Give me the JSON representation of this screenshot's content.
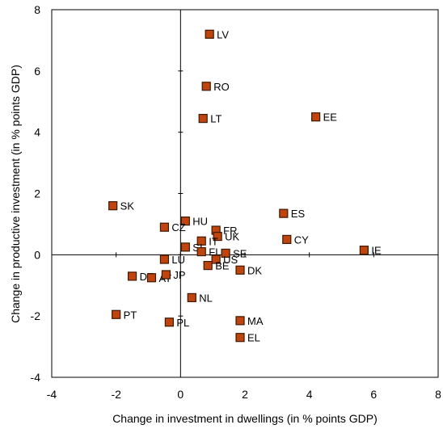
{
  "chart_data": {
    "type": "scatter",
    "title": "",
    "xlabel": "Change in investment in dwellings (in % points GDP)",
    "ylabel": "Change in productive investment (in % points GDP)",
    "xlim": [
      -4,
      8
    ],
    "ylim": [
      -4,
      8
    ],
    "xticks": [
      -4,
      -2,
      0,
      2,
      4,
      6,
      8
    ],
    "yticks": [
      -4,
      -2,
      0,
      2,
      4,
      6,
      8
    ],
    "grid": false,
    "marker": {
      "shape": "square",
      "fill": "#c0440d",
      "stroke": "#3d1a00"
    },
    "points": [
      {
        "label": "LV",
        "x": 0.9,
        "y": 7.2
      },
      {
        "label": "RO",
        "x": 0.8,
        "y": 5.5
      },
      {
        "label": "LT",
        "x": 0.7,
        "y": 4.45
      },
      {
        "label": "EE",
        "x": 4.2,
        "y": 4.5
      },
      {
        "label": "SK",
        "x": -2.1,
        "y": 1.6
      },
      {
        "label": "HU",
        "x": 0.15,
        "y": 1.1
      },
      {
        "label": "CZ",
        "x": -0.5,
        "y": 0.9
      },
      {
        "label": "ES",
        "x": 3.2,
        "y": 1.35
      },
      {
        "label": "FR",
        "x": 1.1,
        "y": 0.8
      },
      {
        "label": "UK",
        "x": 1.15,
        "y": 0.6
      },
      {
        "label": "CY",
        "x": 3.3,
        "y": 0.5
      },
      {
        "label": "IT",
        "x": 0.65,
        "y": 0.45
      },
      {
        "label": "SI",
        "x": 0.15,
        "y": 0.25
      },
      {
        "label": "FI",
        "x": 0.65,
        "y": 0.1
      },
      {
        "label": "SE",
        "x": 1.4,
        "y": 0.05
      },
      {
        "label": "IE",
        "x": 5.7,
        "y": 0.15
      },
      {
        "label": "LU",
        "x": -0.5,
        "y": -0.15
      },
      {
        "label": "US",
        "x": 1.1,
        "y": -0.15
      },
      {
        "label": "BE",
        "x": 0.85,
        "y": -0.35
      },
      {
        "label": "DK",
        "x": 1.85,
        "y": -0.5
      },
      {
        "label": "DE",
        "x": -1.5,
        "y": -0.7
      },
      {
        "label": "AT",
        "x": -0.9,
        "y": -0.75
      },
      {
        "label": "JP",
        "x": -0.45,
        "y": -0.65
      },
      {
        "label": "NL",
        "x": 0.35,
        "y": -1.4
      },
      {
        "label": "PT",
        "x": -2.0,
        "y": -1.95
      },
      {
        "label": "PL",
        "x": -0.35,
        "y": -2.2
      },
      {
        "label": "MA",
        "x": 1.85,
        "y": -2.15
      },
      {
        "label": "EL",
        "x": 1.85,
        "y": -2.7
      }
    ]
  }
}
